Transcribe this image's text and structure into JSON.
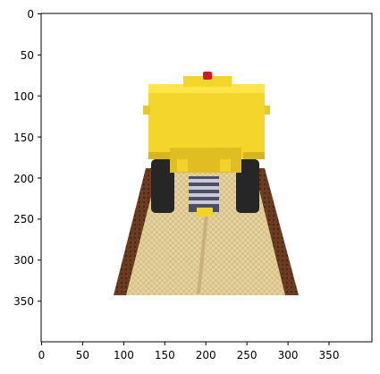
{
  "image": {
    "subject": "yellow toy bulldozer on a woven mat",
    "x_ticks": [
      "0",
      "50",
      "100",
      "150",
      "200",
      "250",
      "300",
      "350"
    ],
    "y_ticks": [
      "0",
      "50",
      "100",
      "150",
      "200",
      "250",
      "300",
      "350"
    ],
    "x_range": [
      0,
      400
    ],
    "y_range": [
      0,
      400
    ],
    "colors": {
      "blade": "#f2d32a",
      "blade_shadow": "#d8b51e",
      "tread": "#6a3a22",
      "mat": "#e3cf9a",
      "tire": "#2a2a2a",
      "light": "#d11a1a"
    }
  }
}
